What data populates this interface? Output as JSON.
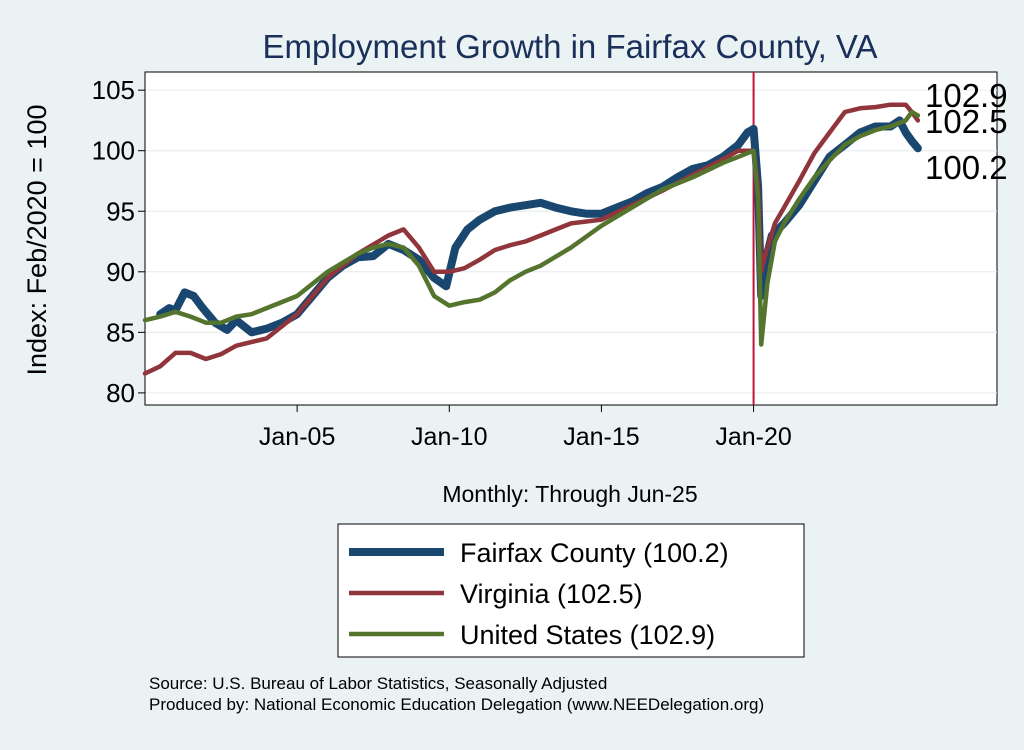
{
  "chart_data": {
    "type": "line",
    "title": "Employment Growth in Fairfax  County, VA",
    "xlabel": "Monthly: Through Jun-25",
    "ylabel": "Index: Feb/2020 = 100",
    "xlim": [
      2000.0,
      2028.0
    ],
    "ylim": [
      79.0,
      106.5
    ],
    "yticks": [
      80,
      85,
      90,
      95,
      100,
      105
    ],
    "xticks": [
      {
        "value": 2005.0,
        "label": "Jan-05"
      },
      {
        "value": 2010.0,
        "label": "Jan-10"
      },
      {
        "value": 2015.0,
        "label": "Jan-15"
      },
      {
        "value": 2020.0,
        "label": "Jan-20"
      }
    ],
    "reference_line_x": 2020.0,
    "grid": true,
    "legend_position": "bottom",
    "series": [
      {
        "name": "Fairfax  County (100.2)",
        "color": "#1a476f",
        "end_label": "100.2",
        "x": [
          2000.5,
          2000.8,
          2001.0,
          2001.3,
          2001.6,
          2001.9,
          2002.3,
          2002.7,
          2003.0,
          2003.5,
          2004.0,
          2004.5,
          2005.0,
          2005.5,
          2006.0,
          2006.5,
          2007.0,
          2007.5,
          2008.0,
          2008.5,
          2009.0,
          2009.5,
          2009.9,
          2010.2,
          2010.6,
          2011.0,
          2011.5,
          2012.0,
          2012.5,
          2013.0,
          2013.5,
          2014.0,
          2014.5,
          2015.0,
          2015.5,
          2016.0,
          2016.5,
          2017.0,
          2017.5,
          2018.0,
          2018.5,
          2019.0,
          2019.5,
          2019.8,
          2020.0,
          2020.15,
          2020.25,
          2020.35,
          2020.6,
          2021.0,
          2021.5,
          2022.0,
          2022.5,
          2023.0,
          2023.5,
          2024.0,
          2024.5,
          2024.8,
          2025.0,
          2025.2,
          2025.4
        ],
        "y": [
          86.5,
          87.0,
          86.8,
          88.3,
          88.0,
          87.0,
          85.8,
          85.2,
          86.0,
          85.0,
          85.3,
          85.8,
          86.5,
          88.0,
          89.5,
          90.5,
          91.2,
          91.3,
          92.3,
          91.8,
          91.0,
          89.5,
          88.8,
          92.0,
          93.5,
          94.3,
          95.0,
          95.3,
          95.5,
          95.7,
          95.3,
          95.0,
          94.8,
          94.8,
          95.3,
          95.8,
          96.5,
          97.0,
          97.8,
          98.5,
          98.8,
          99.5,
          100.5,
          101.5,
          101.8,
          97.0,
          88.0,
          90.5,
          93.0,
          94.0,
          95.5,
          97.5,
          99.5,
          100.5,
          101.5,
          102.0,
          102.0,
          102.5,
          101.5,
          100.8,
          100.2
        ]
      },
      {
        "name": "Virginia (102.5)",
        "color": "#90353b",
        "end_label": "102.5",
        "x": [
          2000.0,
          2000.5,
          2001.0,
          2001.5,
          2002.0,
          2002.5,
          2003.0,
          2004.0,
          2005.0,
          2006.0,
          2007.0,
          2008.0,
          2008.5,
          2009.0,
          2009.5,
          2010.0,
          2010.5,
          2011.0,
          2011.5,
          2012.0,
          2012.5,
          2013.0,
          2013.5,
          2014.0,
          2015.0,
          2016.0,
          2017.0,
          2018.0,
          2019.0,
          2019.5,
          2020.0,
          2020.15,
          2020.25,
          2020.4,
          2020.7,
          2021.0,
          2021.5,
          2022.0,
          2022.5,
          2023.0,
          2023.5,
          2024.0,
          2024.5,
          2025.0,
          2025.2,
          2025.4
        ],
        "y": [
          81.6,
          82.2,
          83.3,
          83.3,
          82.8,
          83.2,
          83.9,
          84.5,
          86.5,
          89.5,
          91.5,
          93.0,
          93.5,
          92.0,
          90.0,
          90.0,
          90.3,
          91.0,
          91.8,
          92.2,
          92.5,
          93.0,
          93.5,
          94.0,
          94.3,
          95.5,
          96.7,
          98.0,
          99.3,
          100.0,
          100.0,
          97.0,
          90.0,
          91.5,
          94.0,
          95.3,
          97.5,
          99.8,
          101.5,
          103.2,
          103.5,
          103.6,
          103.8,
          103.8,
          103.2,
          102.5
        ]
      },
      {
        "name": "United States (102.9)",
        "color": "#55752f",
        "end_label": "102.9",
        "x": [
          2000.0,
          2000.5,
          2001.0,
          2001.5,
          2002.0,
          2002.5,
          2003.0,
          2003.5,
          2004.0,
          2005.0,
          2006.0,
          2007.0,
          2007.5,
          2008.0,
          2008.5,
          2009.0,
          2009.5,
          2010.0,
          2010.5,
          2011.0,
          2011.5,
          2012.0,
          2012.5,
          2013.0,
          2014.0,
          2015.0,
          2016.0,
          2017.0,
          2018.0,
          2019.0,
          2019.5,
          2020.0,
          2020.15,
          2020.25,
          2020.45,
          2020.7,
          2021.0,
          2021.5,
          2022.0,
          2022.5,
          2023.0,
          2023.5,
          2024.0,
          2024.5,
          2025.0,
          2025.2,
          2025.4
        ],
        "y": [
          86.0,
          86.3,
          86.7,
          86.3,
          85.8,
          85.8,
          86.3,
          86.5,
          87.0,
          88.0,
          90.0,
          91.5,
          92.0,
          92.3,
          92.0,
          90.5,
          88.0,
          87.2,
          87.5,
          87.7,
          88.3,
          89.3,
          90.0,
          90.5,
          92.0,
          93.8,
          95.3,
          96.8,
          97.8,
          99.0,
          99.5,
          100.0,
          96.0,
          84.0,
          89.0,
          92.5,
          94.0,
          96.0,
          97.8,
          99.2,
          100.5,
          101.2,
          101.7,
          102.0,
          102.5,
          103.2,
          102.9
        ]
      }
    ]
  },
  "notes": {
    "source": "Source: U.S. Bureau of Labor Statistics, Seasonally Adjusted",
    "produced_by": "Produced by: National Economic Education Delegation (www.NEEDelegation.org)"
  }
}
